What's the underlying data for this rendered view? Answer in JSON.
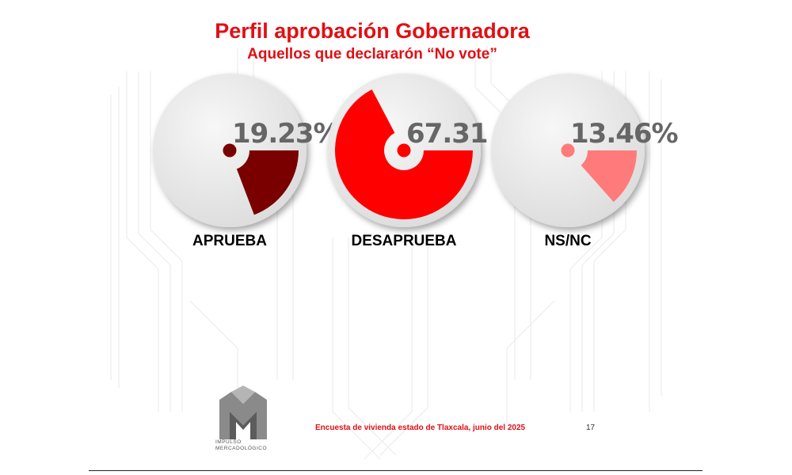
{
  "header": {
    "title": "Perfil aprobación Gobernadora",
    "subtitle": "Aquellos que declararón “No vote”"
  },
  "chart_data": {
    "type": "pie",
    "title": "Perfil aprobación Gobernadora",
    "subtitle": "Aquellos que declararón “No vote”",
    "charts": [
      {
        "category": "APRUEBA",
        "value": 19.23,
        "label": "19.23%",
        "color": "#7a0000"
      },
      {
        "category": "DESAPRUEBA",
        "value": 67.31,
        "label": "67.31",
        "color": "#ff0000"
      },
      {
        "category": "NS/NC",
        "value": 13.46,
        "label": "13.46%",
        "color": "#ff7b7b"
      }
    ]
  },
  "footer": {
    "source": "Encuesta de vivienda estado de Tlaxcala, junio   del 2025",
    "page_number": "17",
    "logo_line1": "IMPULSO",
    "logo_line2": "MERCADOLÓGICO"
  },
  "colors": {
    "title": "#e10f14",
    "disc": "#ececec"
  }
}
